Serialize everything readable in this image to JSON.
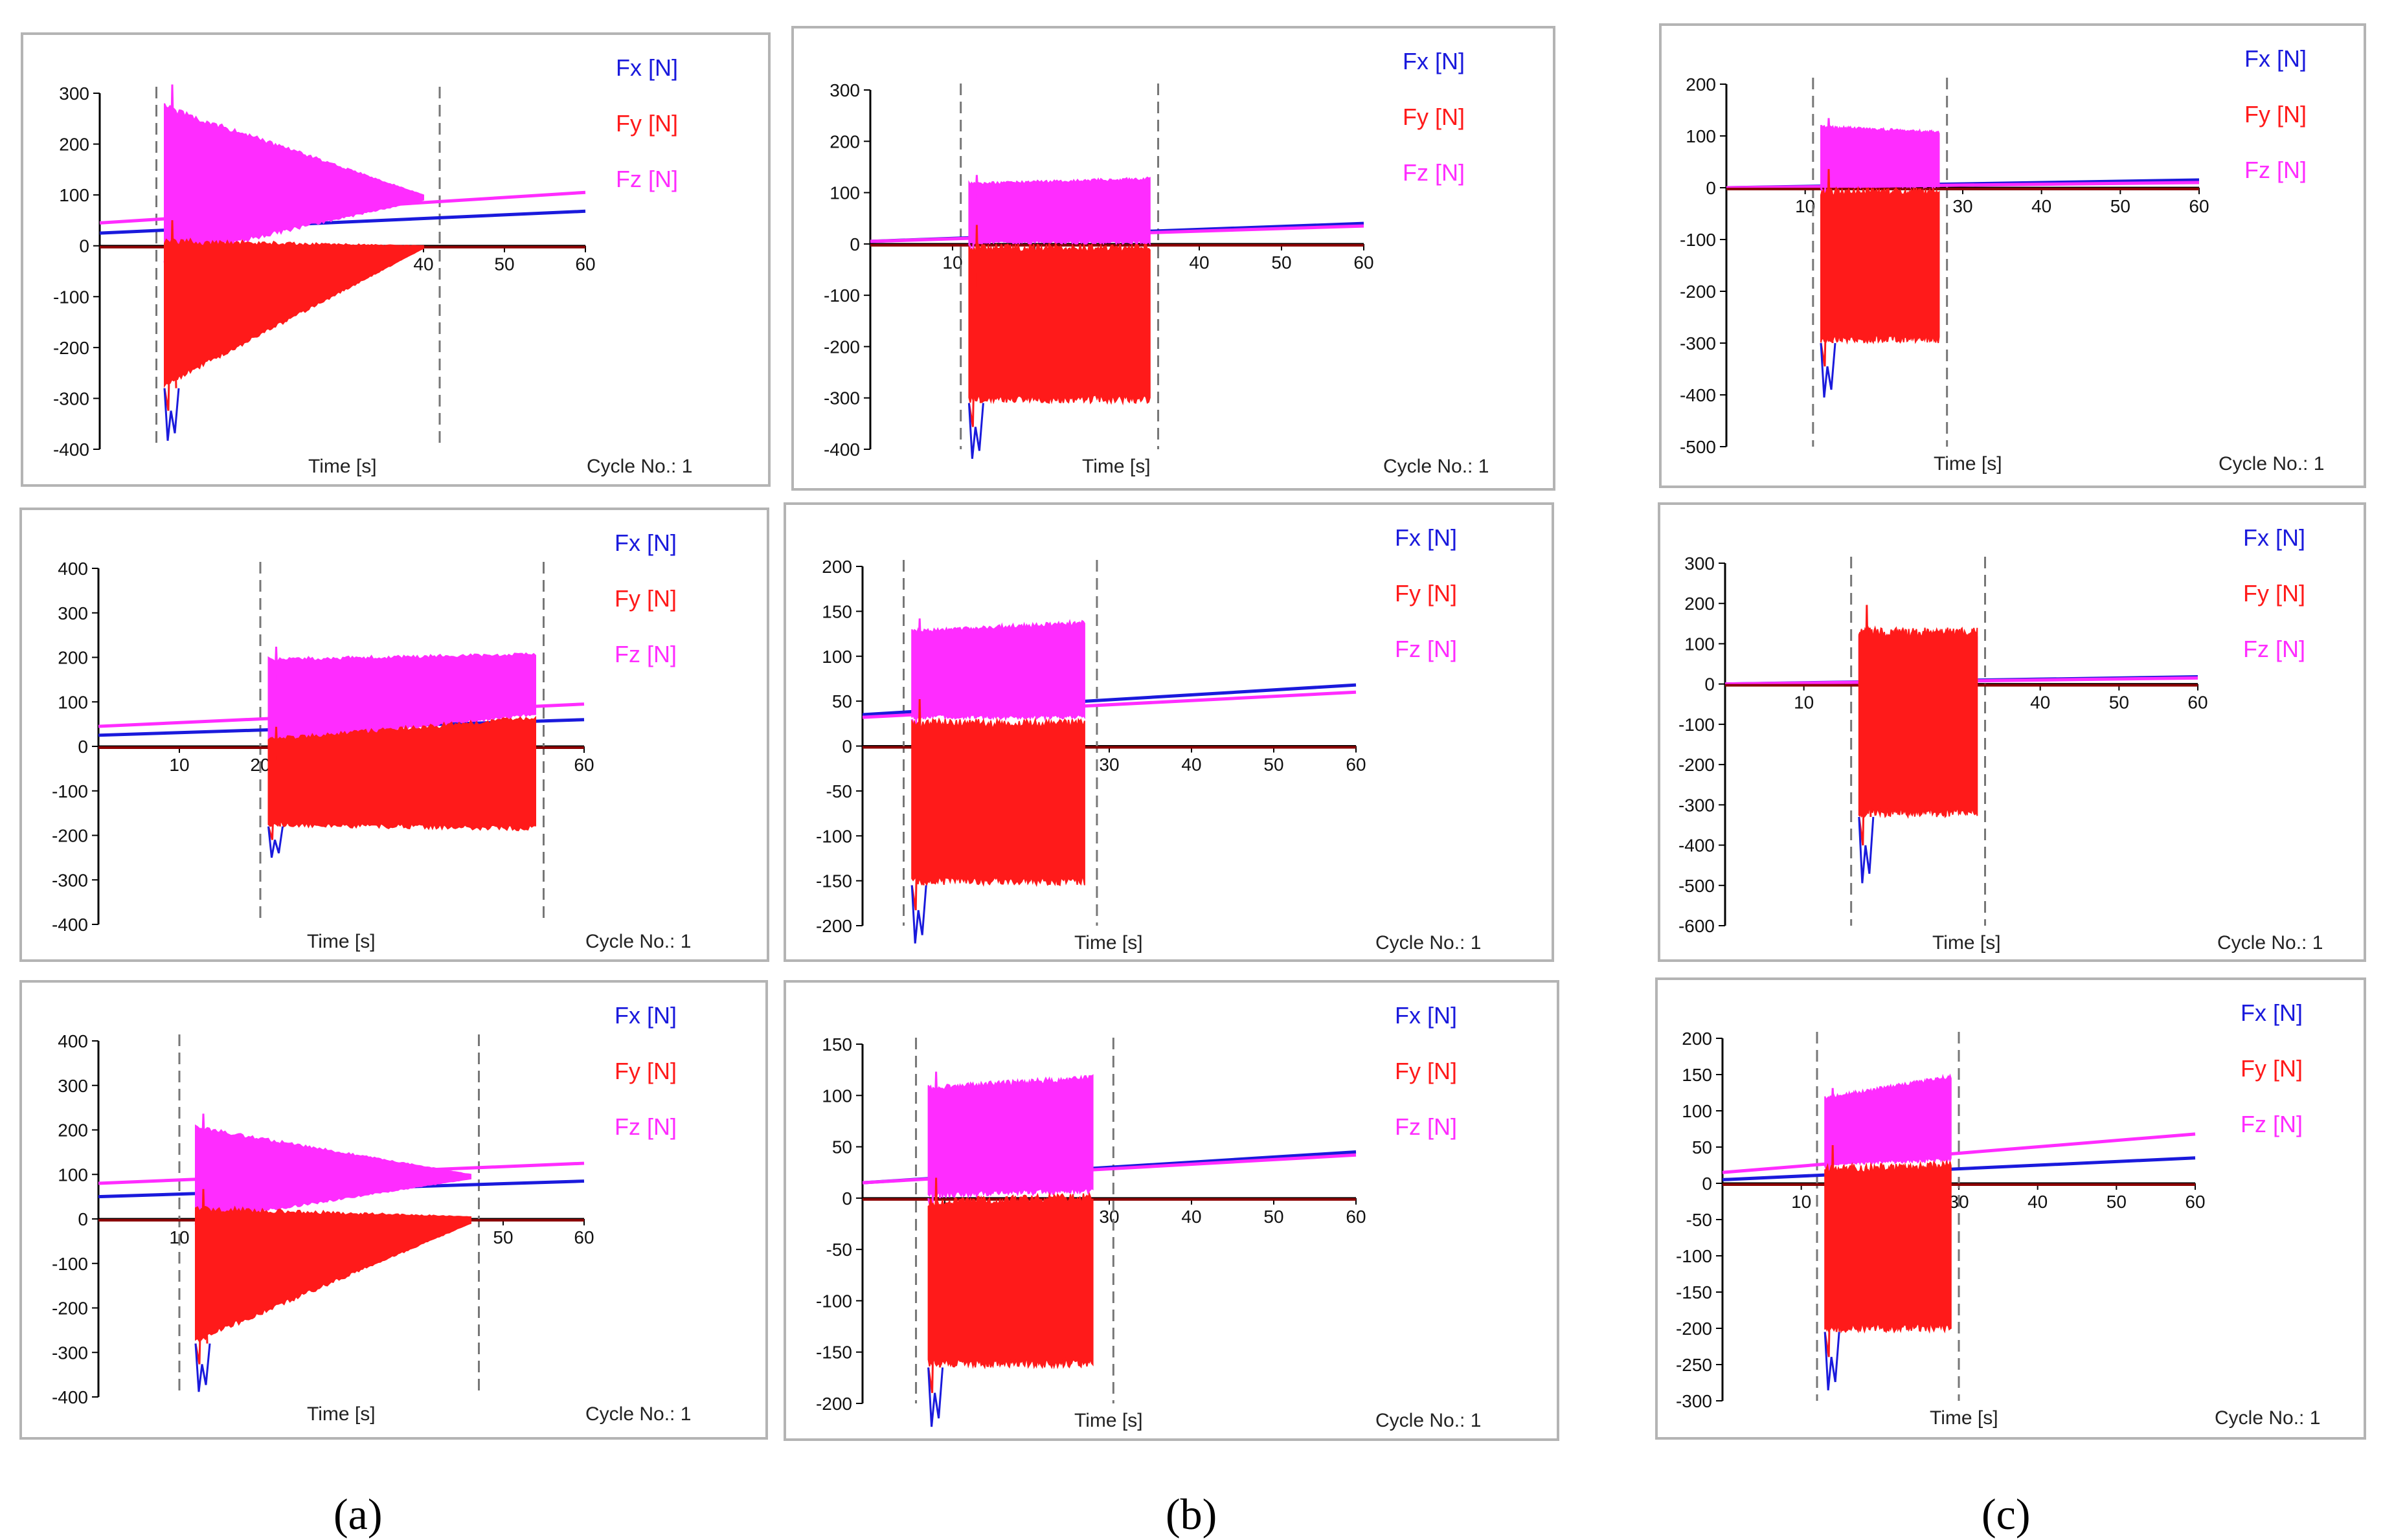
{
  "figure": {
    "column_labels": [
      "(a)",
      "(b)",
      "(c)"
    ],
    "colors": {
      "Fx": "#1a1adc",
      "Fy": "#ff1a1a",
      "Fz": "#ff2cff",
      "axis": "#000000",
      "marker": "#777777",
      "frame": "#b4b4b4"
    }
  },
  "chart_data": [
    {
      "id": "a1",
      "type": "line",
      "xlabel": "Time [s]",
      "cycle_label": "Cycle No.: 1",
      "legend": [
        "Fx [N]",
        "Fy [N]",
        "Fz [N]"
      ],
      "xlim": [
        0,
        60
      ],
      "xticks": [
        10,
        20,
        30,
        40,
        50,
        60
      ],
      "xtick_labels": [
        "",
        "",
        "",
        "40",
        "50",
        "60"
      ],
      "ylim": [
        -400,
        300
      ],
      "yticks": [
        300,
        200,
        100,
        0,
        -100,
        -200,
        -300,
        -400
      ],
      "markers": [
        7,
        42
      ],
      "series": [
        {
          "name": "Fx [N]",
          "start_value": 25,
          "end_value": 68
        },
        {
          "name": "Fy [N]",
          "machining_envelope": [
            [
              8,
              -280,
              15
            ],
            [
              40,
              -5,
              0
            ]
          ]
        },
        {
          "name": "Fz [N]",
          "start_value": 45,
          "end_value": 105,
          "machining_envelope": [
            [
              8,
              -30,
              280
            ],
            [
              40,
              90,
              100
            ]
          ]
        }
      ]
    },
    {
      "id": "b1",
      "type": "line",
      "xlabel": "Time [s]",
      "cycle_label": "Cycle No.: 1",
      "legend": [
        "Fx [N]",
        "Fy [N]",
        "Fz [N]"
      ],
      "xlim": [
        0,
        60
      ],
      "xticks": [
        10,
        20,
        30,
        40,
        50,
        60
      ],
      "xtick_labels": [
        "10",
        "",
        "",
        "40",
        "50",
        "60"
      ],
      "ylim": [
        -400,
        300
      ],
      "yticks": [
        300,
        200,
        100,
        0,
        -100,
        -200,
        -300,
        -400
      ],
      "markers": [
        11,
        35
      ],
      "series": [
        {
          "name": "Fx [N]",
          "start_value": 5,
          "end_value": 40
        },
        {
          "name": "Fy [N]",
          "machining_envelope": [
            [
              12,
              -310,
              0
            ],
            [
              34,
              -310,
              0
            ]
          ]
        },
        {
          "name": "Fz [N]",
          "start_value": 5,
          "end_value": 35,
          "machining_envelope": [
            [
              12,
              0,
              120
            ],
            [
              34,
              0,
              130
            ]
          ]
        }
      ]
    },
    {
      "id": "c1",
      "type": "line",
      "xlabel": "Time [s]",
      "cycle_label": "Cycle No.: 1",
      "legend": [
        "Fx [N]",
        "Fy [N]",
        "Fz [N]"
      ],
      "xlim": [
        0,
        60
      ],
      "xticks": [
        10,
        20,
        30,
        40,
        50,
        60
      ],
      "xtick_labels": [
        "10",
        "",
        "30",
        "40",
        "50",
        "60"
      ],
      "ylim": [
        -500,
        200
      ],
      "yticks": [
        200,
        100,
        0,
        -100,
        -200,
        -300,
        -400,
        -500
      ],
      "markers": [
        11,
        28
      ],
      "series": [
        {
          "name": "Fx [N]",
          "start_value": 0,
          "end_value": 15
        },
        {
          "name": "Fy [N]",
          "machining_envelope": [
            [
              12,
              -300,
              0
            ],
            [
              27,
              -300,
              0
            ]
          ]
        },
        {
          "name": "Fz [N]",
          "start_value": 0,
          "end_value": 10,
          "machining_envelope": [
            [
              12,
              0,
              120
            ],
            [
              27,
              0,
              110
            ]
          ]
        }
      ]
    },
    {
      "id": "a2",
      "type": "line",
      "xlabel": "Time [s]",
      "cycle_label": "Cycle No.: 1",
      "legend": [
        "Fx [N]",
        "Fy [N]",
        "Fz [N]"
      ],
      "xlim": [
        0,
        60
      ],
      "xticks": [
        10,
        20,
        30,
        40,
        50,
        60
      ],
      "xtick_labels": [
        "10",
        "20",
        "",
        "",
        "",
        "60"
      ],
      "ylim": [
        -400,
        400
      ],
      "yticks": [
        400,
        300,
        200,
        100,
        0,
        -100,
        -200,
        -300,
        -400
      ],
      "markers": [
        20,
        55
      ],
      "series": [
        {
          "name": "Fx [N]",
          "start_value": 25,
          "end_value": 60
        },
        {
          "name": "Fy [N]",
          "machining_envelope": [
            [
              21,
              -180,
              20
            ],
            [
              54,
              -190,
              70
            ]
          ]
        },
        {
          "name": "Fz [N]",
          "start_value": 45,
          "end_value": 95,
          "machining_envelope": [
            [
              21,
              0,
              200
            ],
            [
              54,
              70,
              210
            ]
          ]
        }
      ]
    },
    {
      "id": "b2",
      "type": "line",
      "xlabel": "Time [s]",
      "cycle_label": "Cycle No.: 1",
      "legend": [
        "Fx [N]",
        "Fy [N]",
        "Fz [N]"
      ],
      "xlim": [
        0,
        60
      ],
      "xticks": [
        10,
        20,
        30,
        40,
        50,
        60
      ],
      "xtick_labels": [
        "",
        "",
        "30",
        "40",
        "50",
        "60"
      ],
      "ylim": [
        -200,
        200
      ],
      "yticks": [
        200,
        150,
        100,
        50,
        0,
        -50,
        -100,
        -150,
        -200
      ],
      "markers": [
        5,
        28.5
      ],
      "series": [
        {
          "name": "Fx [N]",
          "start_value": 35,
          "end_value": 68
        },
        {
          "name": "Fy [N]",
          "machining_envelope": [
            [
              6,
              -155,
              30
            ],
            [
              27,
              -155,
              30
            ]
          ]
        },
        {
          "name": "Fz [N]",
          "start_value": 32,
          "end_value": 60,
          "machining_envelope": [
            [
              6,
              30,
              130
            ],
            [
              27,
              30,
              140
            ]
          ]
        }
      ]
    },
    {
      "id": "c2",
      "type": "line",
      "xlabel": "Time [s]",
      "cycle_label": "Cycle No.: 1",
      "legend": [
        "Fx [N]",
        "Fy [N]",
        "Fz [N]"
      ],
      "xlim": [
        0,
        60
      ],
      "xticks": [
        10,
        20,
        30,
        40,
        50,
        60
      ],
      "xtick_labels": [
        "10",
        "",
        "",
        "40",
        "50",
        "60"
      ],
      "ylim": [
        -600,
        300
      ],
      "yticks": [
        300,
        200,
        100,
        0,
        -100,
        -200,
        -300,
        -400,
        -500,
        -600
      ],
      "markers": [
        16,
        33
      ],
      "series": [
        {
          "name": "Fx [N]",
          "start_value": 0,
          "end_value": 18
        },
        {
          "name": "Fy [N]",
          "machining_envelope": [
            [
              17,
              -330,
              140
            ],
            [
              32,
              -330,
              140
            ]
          ]
        },
        {
          "name": "Fz [N]",
          "start_value": 0,
          "end_value": 15,
          "machining_envelope": [
            [
              17,
              0,
              120
            ],
            [
              32,
              0,
              120
            ]
          ]
        }
      ]
    },
    {
      "id": "a3",
      "type": "line",
      "xlabel": "Time [s]",
      "cycle_label": "Cycle No.: 1",
      "legend": [
        "Fx [N]",
        "Fy [N]",
        "Fz [N]"
      ],
      "xlim": [
        0,
        60
      ],
      "xticks": [
        10,
        20,
        30,
        40,
        50,
        60
      ],
      "xtick_labels": [
        "10",
        "",
        "",
        "",
        "50",
        "60"
      ],
      "ylim": [
        -400,
        400
      ],
      "yticks": [
        400,
        300,
        200,
        100,
        0,
        -100,
        -200,
        -300,
        -400
      ],
      "markers": [
        10,
        47
      ],
      "series": [
        {
          "name": "Fx [N]",
          "start_value": 50,
          "end_value": 85
        },
        {
          "name": "Fy [N]",
          "machining_envelope": [
            [
              12,
              -280,
              30
            ],
            [
              46,
              -10,
              5
            ]
          ]
        },
        {
          "name": "Fz [N]",
          "start_value": 80,
          "end_value": 125,
          "machining_envelope": [
            [
              12,
              -10,
              210
            ],
            [
              46,
              90,
              100
            ]
          ]
        }
      ]
    },
    {
      "id": "b3",
      "type": "line",
      "xlabel": "Time [s]",
      "cycle_label": "Cycle No.: 1",
      "legend": [
        "Fx [N]",
        "Fy [N]",
        "Fz [N]"
      ],
      "xlim": [
        0,
        60
      ],
      "xticks": [
        10,
        20,
        30,
        40,
        50,
        60
      ],
      "xtick_labels": [
        "",
        "",
        "30",
        "40",
        "50",
        "60"
      ],
      "ylim": [
        -200,
        150
      ],
      "yticks": [
        150,
        100,
        50,
        0,
        -50,
        -100,
        -150,
        -200
      ],
      "markers": [
        6.5,
        30.5
      ],
      "series": [
        {
          "name": "Fx [N]",
          "start_value": 15,
          "end_value": 45
        },
        {
          "name": "Fy [N]",
          "machining_envelope": [
            [
              8,
              -165,
              0
            ],
            [
              28,
              -165,
              5
            ]
          ]
        },
        {
          "name": "Fz [N]",
          "start_value": 15,
          "end_value": 42,
          "machining_envelope": [
            [
              8,
              0,
              110
            ],
            [
              28,
              5,
              120
            ]
          ]
        }
      ]
    },
    {
      "id": "c3",
      "type": "line",
      "xlabel": "Time [s]",
      "cycle_label": "Cycle No.: 1",
      "legend": [
        "Fx [N]",
        "Fy [N]",
        "Fz [N]"
      ],
      "xlim": [
        0,
        60
      ],
      "xticks": [
        10,
        20,
        30,
        40,
        50,
        60
      ],
      "xtick_labels": [
        "10",
        "",
        "30",
        "40",
        "50",
        "60"
      ],
      "ylim": [
        -300,
        200
      ],
      "yticks": [
        200,
        150,
        100,
        50,
        0,
        -50,
        -100,
        -150,
        -200,
        -250,
        -300
      ],
      "markers": [
        12,
        30
      ],
      "series": [
        {
          "name": "Fx [N]",
          "start_value": 5,
          "end_value": 35
        },
        {
          "name": "Fy [N]",
          "machining_envelope": [
            [
              13,
              -205,
              25
            ],
            [
              29,
              -205,
              30
            ]
          ]
        },
        {
          "name": "Fz [N]",
          "start_value": 15,
          "end_value": 68,
          "machining_envelope": [
            [
              13,
              25,
              120
            ],
            [
              29,
              30,
              150
            ]
          ]
        }
      ]
    }
  ]
}
